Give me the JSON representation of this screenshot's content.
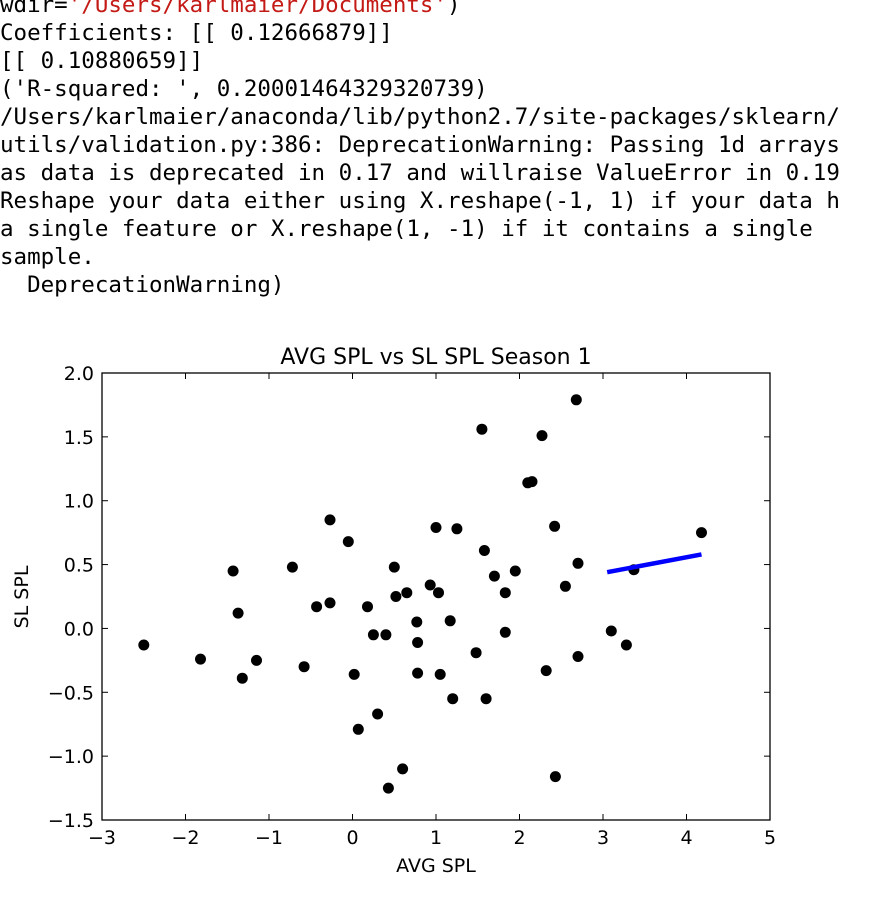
{
  "console": {
    "wdir_prefix": "wdir=",
    "wdir_value": "'/Users/karlmaier/Documents'",
    "wdir_suffix": ")",
    "lines": [
      "Coefficients: [[ 0.12666879]]",
      "[[ 0.10880659]]",
      "('R-squared: ', 0.20001464329320739)",
      "/Users/karlmaier/anaconda/lib/python2.7/site-packages/sklearn/",
      "utils/validation.py:386: DeprecationWarning: Passing 1d arrays",
      "as data is deprecated in 0.17 and willraise ValueError in 0.19",
      "Reshape your data either using X.reshape(-1, 1) if your data h",
      "a single feature or X.reshape(1, -1) if it contains a single",
      "sample.",
      "  DeprecationWarning)"
    ]
  },
  "chart_data": {
    "type": "scatter",
    "title": "AVG SPL vs SL SPL Season 1",
    "xlabel": "AVG SPL",
    "ylabel": "SL SPL",
    "xlim": [
      -3,
      5
    ],
    "ylim": [
      -1.5,
      2.0
    ],
    "xticks": [
      "−3",
      "−2",
      "−1",
      "0",
      "1",
      "2",
      "3",
      "4",
      "5"
    ],
    "xtick_values": [
      -3,
      -2,
      -1,
      0,
      1,
      2,
      3,
      4,
      5
    ],
    "yticks": [
      "2.0",
      "1.5",
      "1.0",
      "0.5",
      "0.0",
      "−0.5",
      "−1.0",
      "−1.5"
    ],
    "ytick_values": [
      2.0,
      1.5,
      1.0,
      0.5,
      0.0,
      -0.5,
      -1.0,
      -1.5
    ],
    "grid": false,
    "point_color": "#000000",
    "line_color": "#0000ff",
    "points": [
      {
        "x": -2.5,
        "y": -0.13
      },
      {
        "x": -1.82,
        "y": -0.24
      },
      {
        "x": -1.43,
        "y": 0.45
      },
      {
        "x": -1.37,
        "y": 0.12
      },
      {
        "x": -1.32,
        "y": -0.39
      },
      {
        "x": -1.15,
        "y": -0.25
      },
      {
        "x": -0.72,
        "y": 0.48
      },
      {
        "x": -0.58,
        "y": -0.3
      },
      {
        "x": -0.43,
        "y": 0.17
      },
      {
        "x": -0.27,
        "y": 0.85
      },
      {
        "x": -0.27,
        "y": 0.2
      },
      {
        "x": -0.05,
        "y": 0.68
      },
      {
        "x": 0.02,
        "y": -0.36
      },
      {
        "x": 0.07,
        "y": -0.79
      },
      {
        "x": 0.18,
        "y": 0.17
      },
      {
        "x": 0.25,
        "y": -0.05
      },
      {
        "x": 0.3,
        "y": -0.67
      },
      {
        "x": 0.4,
        "y": -0.05
      },
      {
        "x": 0.43,
        "y": -1.25
      },
      {
        "x": 0.5,
        "y": 0.48
      },
      {
        "x": 0.52,
        "y": 0.25
      },
      {
        "x": 0.6,
        "y": -1.1
      },
      {
        "x": 0.65,
        "y": 0.28
      },
      {
        "x": 0.77,
        "y": 0.05
      },
      {
        "x": 0.78,
        "y": -0.11
      },
      {
        "x": 0.78,
        "y": -0.35
      },
      {
        "x": 0.93,
        "y": 0.34
      },
      {
        "x": 1.0,
        "y": 0.79
      },
      {
        "x": 1.03,
        "y": 0.28
      },
      {
        "x": 1.05,
        "y": -0.36
      },
      {
        "x": 1.17,
        "y": 0.06
      },
      {
        "x": 1.2,
        "y": -0.55
      },
      {
        "x": 1.25,
        "y": 0.78
      },
      {
        "x": 1.48,
        "y": -0.19
      },
      {
        "x": 1.55,
        "y": 1.56
      },
      {
        "x": 1.58,
        "y": 0.61
      },
      {
        "x": 1.6,
        "y": -0.55
      },
      {
        "x": 1.7,
        "y": 0.41
      },
      {
        "x": 1.83,
        "y": 0.28
      },
      {
        "x": 1.83,
        "y": -0.03
      },
      {
        "x": 1.95,
        "y": 0.45
      },
      {
        "x": 2.1,
        "y": 1.14
      },
      {
        "x": 2.15,
        "y": 1.15
      },
      {
        "x": 2.27,
        "y": 1.51
      },
      {
        "x": 2.32,
        "y": -0.33
      },
      {
        "x": 2.42,
        "y": 0.8
      },
      {
        "x": 2.43,
        "y": -1.16
      },
      {
        "x": 2.55,
        "y": 0.33
      },
      {
        "x": 2.68,
        "y": 1.79
      },
      {
        "x": 2.7,
        "y": 0.51
      },
      {
        "x": 2.7,
        "y": -0.22
      },
      {
        "x": 3.1,
        "y": -0.02
      },
      {
        "x": 3.28,
        "y": -0.13
      },
      {
        "x": 3.37,
        "y": 0.46
      },
      {
        "x": 4.18,
        "y": 0.75
      }
    ],
    "line": {
      "x": [
        3.05,
        4.18
      ],
      "y": [
        0.44,
        0.58
      ]
    }
  }
}
